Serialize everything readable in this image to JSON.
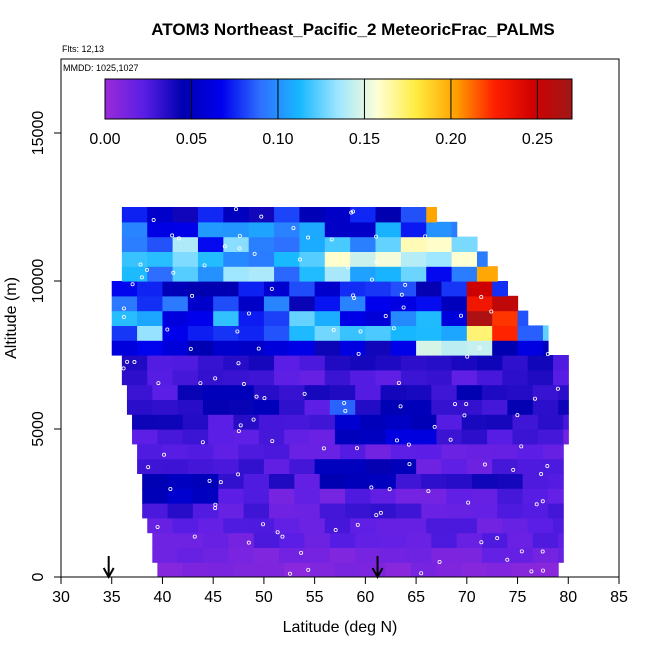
{
  "chart_data": {
    "type": "heatmap",
    "title": "ATOM3 Northeast_Pacific_2 MeteoricFrac_PALMS",
    "flights_label": "Flts: 12,13",
    "dates_label": "MMDD: 1025,1027",
    "xlabel": "Latitude (deg N)",
    "ylabel": "Altitude (m)",
    "xlim": [
      30,
      85
    ],
    "ylim": [
      0,
      17500
    ],
    "x_ticks": [
      30,
      35,
      40,
      45,
      50,
      55,
      60,
      65,
      70,
      75,
      80,
      85
    ],
    "y_ticks": [
      0,
      5000,
      10000,
      15000
    ],
    "colorbar": {
      "range": [
        0,
        0.27
      ],
      "ticks": [
        "0.00",
        "0.05",
        "0.10",
        "0.15",
        "0.20",
        "0.25"
      ],
      "tick_values": [
        0,
        0.05,
        0.1,
        0.15,
        0.2,
        0.25
      ],
      "colors": [
        "#9a2bd8",
        "#5a1ee6",
        "#0000b0",
        "#0000ee",
        "#2f70ff",
        "#17b8ff",
        "#a0e6ff",
        "#ffffd6",
        "#ffec40",
        "#ffa200",
        "#ff2000",
        "#d00000",
        "#a01818"
      ]
    },
    "layers": [
      {
        "alt": [
          0,
          500
        ],
        "lat": [
          39.5,
          79
        ],
        "value": 0.01
      },
      {
        "alt": [
          500,
          1000
        ],
        "lat": [
          39,
          79.5
        ],
        "value": 0.015
      },
      {
        "alt": [
          1000,
          1500
        ],
        "lat": [
          39,
          79.5
        ],
        "value": 0.02
      },
      {
        "alt": [
          1500,
          2000
        ],
        "lat": [
          38.5,
          79.5
        ],
        "value": 0.02
      },
      {
        "alt": [
          2000,
          2500
        ],
        "lat": [
          38,
          79.5
        ],
        "value": 0.025
      },
      {
        "alt": [
          2500,
          3000
        ],
        "lat": [
          38,
          79.5
        ],
        "value": 0.02
      },
      {
        "alt": [
          3000,
          3500
        ],
        "lat": [
          38,
          79.5
        ],
        "value": 0.03
      },
      {
        "alt": [
          3500,
          4000
        ],
        "lat": [
          37.5,
          79.5
        ],
        "value": 0.025
      },
      {
        "alt": [
          4000,
          4500
        ],
        "lat": [
          37.5,
          79.5
        ],
        "value": 0.02
      },
      {
        "alt": [
          4500,
          5000
        ],
        "lat": [
          37,
          80
        ],
        "value": 0.025
      },
      {
        "alt": [
          5000,
          5500
        ],
        "lat": [
          37,
          80
        ],
        "value": 0.03
      },
      {
        "alt": [
          5500,
          6000
        ],
        "lat": [
          36.5,
          80
        ],
        "value": 0.035
      },
      {
        "alt": [
          6000,
          6500
        ],
        "lat": [
          36.5,
          80
        ],
        "value": 0.035
      },
      {
        "alt": [
          6500,
          7000
        ],
        "lat": [
          36,
          80
        ],
        "value": 0.03
      },
      {
        "alt": [
          7000,
          7500
        ],
        "lat": [
          36,
          80
        ],
        "value": 0.03
      },
      {
        "alt": [
          7500,
          8000
        ],
        "lat": [
          35,
          78
        ],
        "value": 0.05
      },
      {
        "alt": [
          8000,
          8500
        ],
        "lat": [
          35,
          78
        ],
        "value": 0.1
      },
      {
        "alt": [
          8500,
          9000
        ],
        "lat": [
          35,
          76
        ],
        "value": 0.09
      },
      {
        "alt": [
          9000,
          9500
        ],
        "lat": [
          35,
          75
        ],
        "value": 0.07
      },
      {
        "alt": [
          9500,
          10000
        ],
        "lat": [
          35,
          74
        ],
        "value": 0.06
      },
      {
        "alt": [
          10000,
          10500
        ],
        "lat": [
          36,
          73
        ],
        "value": 0.1
      },
      {
        "alt": [
          10500,
          11000
        ],
        "lat": [
          36,
          72
        ],
        "value": 0.12
      },
      {
        "alt": [
          11000,
          11500
        ],
        "lat": [
          36,
          71
        ],
        "value": 0.1
      },
      {
        "alt": [
          11500,
          12000
        ],
        "lat": [
          36,
          69
        ],
        "value": 0.08
      },
      {
        "alt": [
          12000,
          12500
        ],
        "lat": [
          36,
          67
        ],
        "value": 0.06
      }
    ],
    "features": [
      {
        "alt": [
          9500,
          10500
        ],
        "lat": [
          70,
          73
        ],
        "value": 0.22
      },
      {
        "alt": [
          8500,
          9500
        ],
        "lat": [
          71,
          75
        ],
        "value": 0.25
      },
      {
        "alt": [
          8000,
          8500
        ],
        "lat": [
          70,
          75
        ],
        "value": 0.2
      },
      {
        "alt": [
          10500,
          11500
        ],
        "lat": [
          64,
          70
        ],
        "value": 0.15
      },
      {
        "alt": [
          11500,
          12500
        ],
        "lat": [
          65,
          67
        ],
        "value": 0.18
      },
      {
        "alt": [
          7500,
          8000
        ],
        "lat": [
          65,
          72
        ],
        "value": 0.15
      },
      {
        "alt": [
          5500,
          6000
        ],
        "lat": [
          56,
          58
        ],
        "value": 0.1
      },
      {
        "alt": [
          4500,
          5500
        ],
        "lat": [
          56,
          68
        ],
        "value": 0.055
      },
      {
        "alt": [
          3000,
          4000
        ],
        "lat": [
          56,
          64
        ],
        "value": 0.05
      },
      {
        "alt": [
          2500,
          3500
        ],
        "lat": [
          39,
          45
        ],
        "value": 0.05
      }
    ],
    "arrows_lat": [
      34.7,
      61.2
    ]
  }
}
